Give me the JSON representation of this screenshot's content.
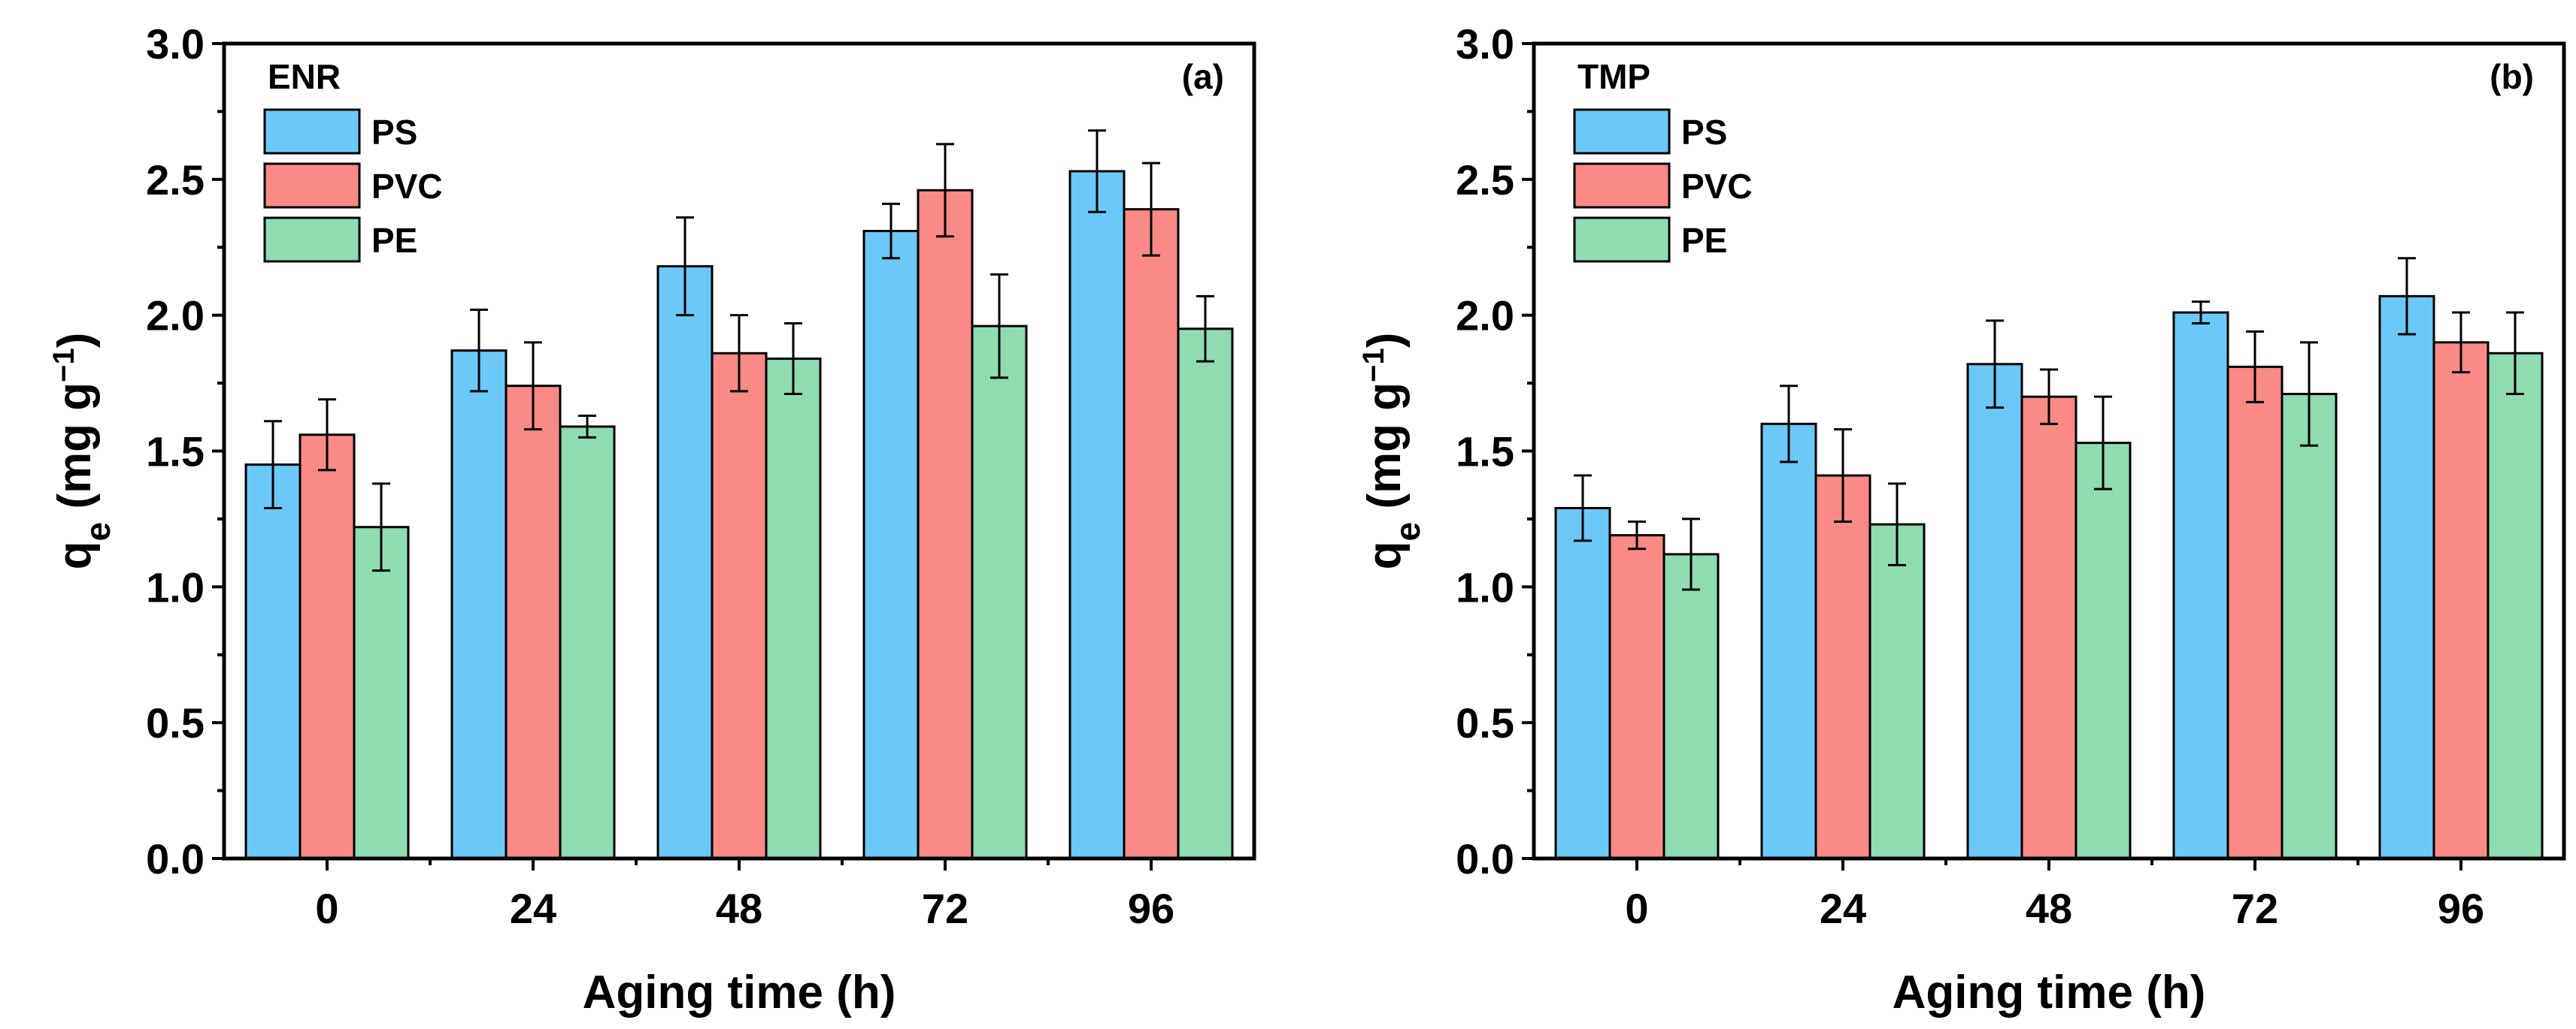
{
  "chart_data": [
    {
      "type": "bar",
      "panel_label": "(a)",
      "title": "ENR",
      "xlabel": "Aging time (h)",
      "ylabel_main": "q",
      "ylabel_sub": "e",
      "ylabel_unit_open": " (mg g",
      "ylabel_unit_sup": "−1",
      "ylabel_unit_close": ")",
      "ylim": [
        0,
        3.0
      ],
      "yticks": [
        "0.0",
        "0.5",
        "1.0",
        "1.5",
        "2.0",
        "2.5",
        "3.0"
      ],
      "categories": [
        "0",
        "24",
        "48",
        "72",
        "96"
      ],
      "legend_position": "top-left",
      "series": [
        {
          "name": "PS",
          "color": "#6cc9f7",
          "values": [
            1.45,
            1.87,
            2.18,
            2.31,
            2.53
          ],
          "errors": [
            0.16,
            0.15,
            0.18,
            0.1,
            0.15
          ]
        },
        {
          "name": "PVC",
          "color": "#f98a86",
          "values": [
            1.56,
            1.74,
            1.86,
            2.46,
            2.39
          ],
          "errors": [
            0.13,
            0.16,
            0.14,
            0.17,
            0.17
          ]
        },
        {
          "name": "PE",
          "color": "#8fdcb1",
          "values": [
            1.22,
            1.59,
            1.84,
            1.96,
            1.95
          ],
          "errors": [
            0.16,
            0.04,
            0.13,
            0.19,
            0.12
          ]
        }
      ]
    },
    {
      "type": "bar",
      "panel_label": "(b)",
      "title": "TMP",
      "xlabel": "Aging time (h)",
      "ylabel_main": "q",
      "ylabel_sub": "e",
      "ylabel_unit_open": " (mg g",
      "ylabel_unit_sup": "−1",
      "ylabel_unit_close": ")",
      "ylim": [
        0,
        3.0
      ],
      "yticks": [
        "0.0",
        "0.5",
        "1.0",
        "1.5",
        "2.0",
        "2.5",
        "3.0"
      ],
      "categories": [
        "0",
        "24",
        "48",
        "72",
        "96"
      ],
      "legend_position": "top-left",
      "series": [
        {
          "name": "PS",
          "color": "#6cc9f7",
          "values": [
            1.29,
            1.6,
            1.82,
            2.01,
            2.07
          ],
          "errors": [
            0.12,
            0.14,
            0.16,
            0.04,
            0.14
          ]
        },
        {
          "name": "PVC",
          "color": "#f98a86",
          "values": [
            1.19,
            1.41,
            1.7,
            1.81,
            1.9
          ],
          "errors": [
            0.05,
            0.17,
            0.1,
            0.13,
            0.11
          ]
        },
        {
          "name": "PE",
          "color": "#8fdcb1",
          "values": [
            1.12,
            1.23,
            1.53,
            1.71,
            1.86
          ],
          "errors": [
            0.13,
            0.15,
            0.17,
            0.19,
            0.15
          ]
        }
      ]
    }
  ]
}
